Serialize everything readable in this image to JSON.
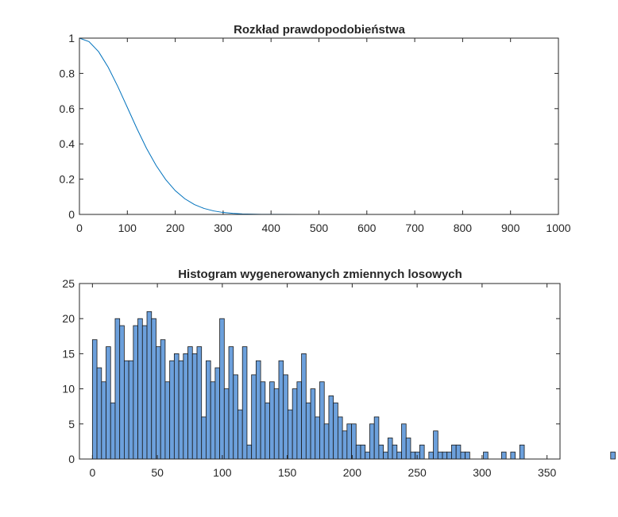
{
  "chart_data": [
    {
      "type": "line",
      "title": "Rozkład prawdopodobieństwa",
      "xlabel": "",
      "ylabel": "",
      "xlim": [
        0,
        1000
      ],
      "ylim": [
        0,
        1
      ],
      "xticks": [
        "0",
        "100",
        "200",
        "300",
        "400",
        "500",
        "600",
        "700",
        "800",
        "900",
        "1000"
      ],
      "yticks": [
        "0",
        "0.2",
        "0.4",
        "0.6",
        "0.8",
        "1"
      ],
      "grid": false,
      "color": "#0072BD",
      "series": [
        {
          "x": [
            0,
            20,
            40,
            60,
            80,
            100,
            120,
            140,
            160,
            180,
            200,
            220,
            240,
            260,
            280,
            300,
            320,
            340,
            360,
            380,
            400,
            500,
            600,
            700,
            800,
            900,
            1000
          ],
          "y": [
            1.0,
            0.98,
            0.923,
            0.835,
            0.726,
            0.607,
            0.487,
            0.375,
            0.278,
            0.198,
            0.135,
            0.089,
            0.056,
            0.034,
            0.02,
            0.011,
            0.006,
            0.003,
            0.0015,
            0.0007,
            0.0003,
            0.0,
            0.0,
            0.0,
            0.0,
            0.0,
            0.0
          ]
        }
      ]
    },
    {
      "type": "bar",
      "title": "Histogram wygenerowanych zmiennych losowych",
      "xlabel": "",
      "ylabel": "",
      "xlim": [
        -10,
        360
      ],
      "ylim": [
        0,
        25
      ],
      "xticks": [
        "0",
        "50",
        "100",
        "150",
        "200",
        "250",
        "300",
        "350"
      ],
      "yticks": [
        "0",
        "5",
        "10",
        "15",
        "20",
        "25"
      ],
      "grid": false,
      "bar_color": "#6CA0DC",
      "bin_start": 0,
      "bin_width": 3.5,
      "counts": [
        17,
        13,
        11,
        16,
        8,
        20,
        19,
        14,
        14,
        19,
        20,
        19,
        21,
        20,
        16,
        17,
        11,
        14,
        15,
        14,
        15,
        16,
        15,
        16,
        6,
        14,
        11,
        13,
        20,
        10,
        16,
        12,
        7,
        16,
        2,
        12,
        14,
        11,
        8,
        11,
        10,
        14,
        12,
        7,
        10,
        11,
        15,
        8,
        10,
        6,
        11,
        5,
        9,
        8,
        6,
        4,
        5,
        5,
        2,
        2,
        1,
        5,
        6,
        2,
        1,
        3,
        2,
        1,
        5,
        3,
        1,
        1,
        2,
        0,
        1,
        4,
        1,
        1,
        1,
        2,
        2,
        1,
        1,
        0,
        0,
        0,
        1,
        0,
        0,
        0,
        1,
        0,
        1,
        0,
        2,
        0,
        0,
        0,
        0,
        0,
        0,
        0,
        0,
        0,
        0,
        0,
        0,
        0,
        0,
        0,
        0,
        0,
        0,
        0,
        1
      ]
    }
  ]
}
